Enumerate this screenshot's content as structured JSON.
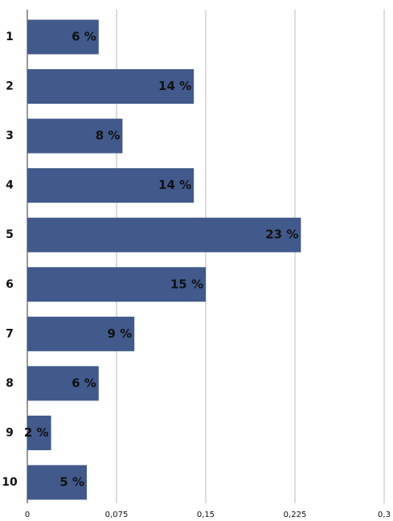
{
  "chart_data": {
    "type": "bar",
    "orientation": "horizontal",
    "categories": [
      "1",
      "2",
      "3",
      "4",
      "5",
      "6",
      "7",
      "8",
      "9",
      "10"
    ],
    "values": [
      0.06,
      0.14,
      0.08,
      0.14,
      0.23,
      0.15,
      0.09,
      0.06,
      0.02,
      0.05
    ],
    "value_labels": [
      "6 %",
      "14 %",
      "8 %",
      "14 %",
      "23 %",
      "15 %",
      "9 %",
      "6 %",
      "2 %",
      "5 %"
    ],
    "color": "#415a8b",
    "xlim": [
      0,
      0.3
    ],
    "xticks": [
      0,
      {
        "value": 0.075,
        "label": "0,075"
      },
      {
        "value": 0.15,
        "label": "0,15"
      },
      {
        "value": 0.225,
        "label": "0,225"
      },
      {
        "value": 0.3,
        "label": "0,3"
      }
    ],
    "grid": true
  }
}
